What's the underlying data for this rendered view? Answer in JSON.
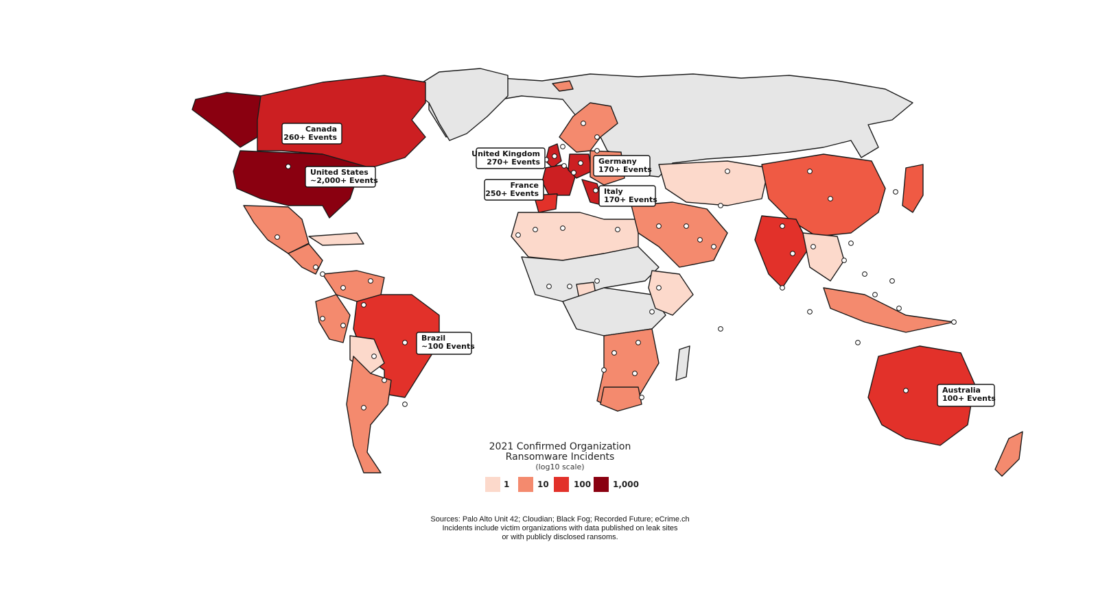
{
  "map": {
    "colors": {
      "no_data": "#e6e6e6",
      "scale_1": "#fcd9cb",
      "scale_10": "#f48a6e",
      "scale_50": "#ef5a44",
      "scale_100": "#e2312a",
      "scale_200": "#cc1f22",
      "scale_1000": "#8a0010",
      "border": "#1a1a1a"
    },
    "callouts": [
      {
        "id": "canada",
        "line1": "Canada",
        "line2": "260+ Events"
      },
      {
        "id": "united-states",
        "line1": "United States",
        "line2": "~2,000+ Events"
      },
      {
        "id": "united-kingdom",
        "line1": "United Kingdom",
        "line2": "270+ Events"
      },
      {
        "id": "france",
        "line1": "France",
        "line2": "250+ Events"
      },
      {
        "id": "germany",
        "line1": "Germany",
        "line2": "170+ Events"
      },
      {
        "id": "italy",
        "line1": "Italy",
        "line2": "170+ Events"
      },
      {
        "id": "brazil",
        "line1": "Brazil",
        "line2": "~100 Events"
      },
      {
        "id": "australia",
        "line1": "Australia",
        "line2": "100+ Events"
      }
    ]
  },
  "legend": {
    "title_line1": "2021 Confirmed Organization",
    "title_line2": "Ransomware Incidents",
    "subtitle": "(log10 scale)",
    "items": [
      {
        "label": "1",
        "color": "#fcd9cb"
      },
      {
        "label": "10",
        "color": "#f48a6e"
      },
      {
        "label": "100",
        "color": "#e2312a"
      },
      {
        "label": "1,000",
        "color": "#8a0010"
      }
    ]
  },
  "footer": {
    "line1": "Sources: Palo Alto Unit 42; Cloudian; Black Fog; Recorded Future; eCrime.ch",
    "line2": "Incidents include victim organizations with data published on leak sites",
    "line3": "or with publicly disclosed ransoms."
  }
}
